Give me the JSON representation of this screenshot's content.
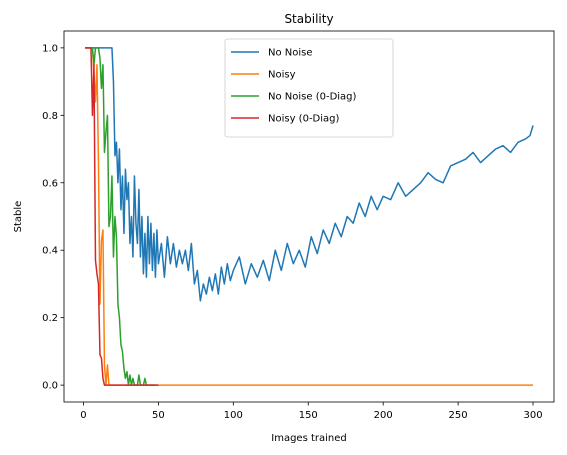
{
  "chart_data": {
    "type": "line",
    "title": "Stability",
    "xlabel": "Images trained",
    "ylabel": "Stable",
    "xlim": [
      -13,
      314
    ],
    "ylim": [
      -0.05,
      1.05
    ],
    "x_ticks": [
      0,
      50,
      100,
      150,
      200,
      250,
      300
    ],
    "y_ticks": [
      0.0,
      0.2,
      0.4,
      0.6,
      0.8,
      1.0
    ],
    "x_tick_labels": [
      "0",
      "50",
      "100",
      "150",
      "200",
      "250",
      "300"
    ],
    "y_tick_labels": [
      "0.0",
      "0.2",
      "0.4",
      "0.6",
      "0.8",
      "1.0"
    ],
    "grid": false,
    "legend_position": "upper center",
    "series": [
      {
        "name": "No Noise",
        "color": "#1f77b4",
        "x": [
          1,
          5,
          10,
          15,
          19,
          20,
          21,
          22,
          23,
          24,
          25,
          26,
          27,
          28,
          29,
          30,
          31,
          32,
          33,
          34,
          35,
          36,
          37,
          38,
          39,
          40,
          41,
          42,
          43,
          44,
          45,
          46,
          47,
          48,
          49,
          50,
          52,
          54,
          56,
          58,
          60,
          62,
          64,
          66,
          68,
          70,
          72,
          74,
          76,
          78,
          80,
          82,
          84,
          86,
          88,
          90,
          92,
          94,
          96,
          98,
          100,
          104,
          108,
          112,
          116,
          120,
          124,
          128,
          132,
          136,
          140,
          144,
          148,
          152,
          156,
          160,
          164,
          168,
          172,
          176,
          180,
          184,
          188,
          192,
          196,
          200,
          205,
          210,
          215,
          220,
          225,
          230,
          235,
          240,
          245,
          250,
          255,
          260,
          265,
          270,
          275,
          280,
          285,
          290,
          295,
          298,
          300
        ],
        "y": [
          1.0,
          1.0,
          1.0,
          1.0,
          1.0,
          0.9,
          0.68,
          0.72,
          0.6,
          0.7,
          0.52,
          0.62,
          0.45,
          0.64,
          0.55,
          0.6,
          0.42,
          0.5,
          0.38,
          0.62,
          0.48,
          0.42,
          0.58,
          0.38,
          0.5,
          0.33,
          0.45,
          0.32,
          0.5,
          0.36,
          0.48,
          0.34,
          0.45,
          0.32,
          0.46,
          0.36,
          0.42,
          0.32,
          0.44,
          0.36,
          0.42,
          0.35,
          0.4,
          0.36,
          0.4,
          0.34,
          0.42,
          0.3,
          0.34,
          0.25,
          0.3,
          0.27,
          0.32,
          0.28,
          0.33,
          0.27,
          0.35,
          0.3,
          0.36,
          0.31,
          0.34,
          0.38,
          0.3,
          0.36,
          0.32,
          0.37,
          0.31,
          0.4,
          0.34,
          0.42,
          0.36,
          0.4,
          0.35,
          0.44,
          0.39,
          0.46,
          0.42,
          0.48,
          0.44,
          0.5,
          0.48,
          0.54,
          0.5,
          0.56,
          0.52,
          0.56,
          0.55,
          0.6,
          0.56,
          0.58,
          0.6,
          0.63,
          0.61,
          0.6,
          0.65,
          0.66,
          0.67,
          0.69,
          0.66,
          0.68,
          0.7,
          0.71,
          0.69,
          0.72,
          0.73,
          0.74,
          0.77
        ]
      },
      {
        "name": "Noisy",
        "color": "#ff7f0e",
        "x": [
          1,
          2,
          3,
          4,
          5,
          6,
          7,
          8,
          9,
          10,
          11,
          12,
          13,
          14,
          15,
          16,
          17,
          18,
          20,
          30,
          40,
          50,
          100,
          150,
          200,
          250,
          300
        ],
        "y": [
          1.0,
          1.0,
          1.0,
          1.0,
          1.0,
          1.0,
          0.92,
          0.84,
          0.95,
          0.66,
          0.24,
          0.43,
          0.46,
          0.06,
          0.0,
          0.06,
          0.0,
          0.0,
          0.0,
          0.0,
          0.0,
          0.0,
          0.0,
          0.0,
          0.0,
          0.0,
          0.0
        ]
      },
      {
        "name": "No Noise (0-Diag)",
        "color": "#2ca02c",
        "x": [
          1,
          3,
          5,
          6,
          7,
          8,
          9,
          10,
          11,
          12,
          13,
          14,
          15,
          16,
          17,
          18,
          19,
          20,
          21,
          22,
          23,
          24,
          25,
          26,
          27,
          28,
          29,
          30,
          31,
          32,
          33,
          34,
          35,
          36,
          37,
          38,
          39,
          40,
          41,
          42,
          43,
          44,
          45,
          46,
          47,
          48
        ],
        "y": [
          1.0,
          1.0,
          1.0,
          1.0,
          0.95,
          1.0,
          1.0,
          1.0,
          0.97,
          0.88,
          0.95,
          0.69,
          0.75,
          0.8,
          0.47,
          0.5,
          0.62,
          0.38,
          0.5,
          0.44,
          0.24,
          0.2,
          0.12,
          0.1,
          0.05,
          0.02,
          0.04,
          0.0,
          0.03,
          0.0,
          0.02,
          0.0,
          0.0,
          0.0,
          0.03,
          0.0,
          0.0,
          0.0,
          0.02,
          0.0,
          0.0,
          0.0,
          0.0,
          0.0,
          0.0,
          0.0
        ]
      },
      {
        "name": "Noisy (0-Diag)",
        "color": "#d62728",
        "x": [
          1,
          2,
          3,
          4,
          5,
          6,
          7,
          8,
          9,
          10,
          11,
          12,
          13,
          14,
          15,
          18,
          20,
          30,
          40,
          50
        ],
        "y": [
          1.0,
          1.0,
          1.0,
          1.0,
          1.0,
          0.8,
          0.95,
          0.37,
          0.33,
          0.3,
          0.09,
          0.08,
          0.02,
          0.0,
          0.0,
          0.0,
          0.0,
          0.0,
          0.0,
          0.0
        ]
      }
    ]
  }
}
